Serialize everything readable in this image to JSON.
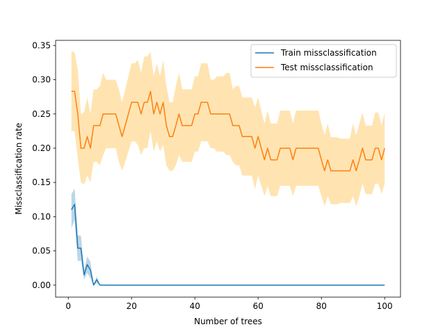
{
  "chart_data": {
    "type": "line",
    "xlabel": "Number of trees",
    "ylabel": "Missclassification rate",
    "xlim": [
      -4,
      105
    ],
    "ylim": [
      -0.0175,
      0.3575
    ],
    "xticks": [
      0,
      20,
      40,
      60,
      80,
      100
    ],
    "yticks": [
      0.0,
      0.05,
      0.1,
      0.15,
      0.2,
      0.25,
      0.3,
      0.35
    ],
    "ytick_format": 2,
    "grid": false,
    "legend_position": "top-right",
    "series": [
      {
        "name": "Train missclassification",
        "color": "#1f77b4",
        "band_color": "#1f77b4",
        "x": [
          1,
          2,
          3,
          4,
          5,
          6,
          7,
          8,
          9,
          10,
          11,
          12,
          13,
          14,
          15,
          16,
          17,
          18,
          19,
          20,
          21,
          22,
          23,
          24,
          25,
          26,
          27,
          28,
          29,
          30,
          31,
          32,
          33,
          34,
          35,
          36,
          37,
          38,
          39,
          40,
          41,
          42,
          43,
          44,
          45,
          46,
          47,
          48,
          49,
          50,
          51,
          52,
          53,
          54,
          55,
          56,
          57,
          58,
          59,
          60,
          61,
          62,
          63,
          64,
          65,
          66,
          67,
          68,
          69,
          70,
          71,
          72,
          73,
          74,
          75,
          76,
          77,
          78,
          79,
          80,
          81,
          82,
          83,
          84,
          85,
          86,
          87,
          88,
          89,
          90,
          91,
          92,
          93,
          94,
          95,
          96,
          97,
          98,
          99,
          100
        ],
        "values": [
          0.11,
          0.118,
          0.054,
          0.054,
          0.015,
          0.03,
          0.022,
          0.0,
          0.008,
          0.0,
          0.0,
          0.0,
          0.0,
          0.0,
          0.0,
          0.0,
          0.0,
          0.0,
          0.0,
          0.0,
          0.0,
          0.0,
          0.0,
          0.0,
          0.0,
          0.0,
          0.0,
          0.0,
          0.0,
          0.0,
          0.0,
          0.0,
          0.0,
          0.0,
          0.0,
          0.0,
          0.0,
          0.0,
          0.0,
          0.0,
          0.0,
          0.0,
          0.0,
          0.0,
          0.0,
          0.0,
          0.0,
          0.0,
          0.0,
          0.0,
          0.0,
          0.0,
          0.0,
          0.0,
          0.0,
          0.0,
          0.0,
          0.0,
          0.0,
          0.0,
          0.0,
          0.0,
          0.0,
          0.0,
          0.0,
          0.0,
          0.0,
          0.0,
          0.0,
          0.0,
          0.0,
          0.0,
          0.0,
          0.0,
          0.0,
          0.0,
          0.0,
          0.0,
          0.0,
          0.0,
          0.0,
          0.0,
          0.0,
          0.0,
          0.0,
          0.0,
          0.0,
          0.0,
          0.0,
          0.0,
          0.0,
          0.0,
          0.0,
          0.0,
          0.0,
          0.0,
          0.0,
          0.0,
          0.0,
          0.0
        ],
        "lower": [
          0.083,
          0.095,
          0.035,
          0.036,
          0.008,
          0.018,
          0.01,
          0.0,
          0.003,
          0.0,
          0.0,
          0.0,
          0.0,
          0.0,
          0.0,
          0.0,
          0.0,
          0.0,
          0.0,
          0.0,
          0.0,
          0.0,
          0.0,
          0.0,
          0.0,
          0.0,
          0.0,
          0.0,
          0.0,
          0.0,
          0.0,
          0.0,
          0.0,
          0.0,
          0.0,
          0.0,
          0.0,
          0.0,
          0.0,
          0.0,
          0.0,
          0.0,
          0.0,
          0.0,
          0.0,
          0.0,
          0.0,
          0.0,
          0.0,
          0.0,
          0.0,
          0.0,
          0.0,
          0.0,
          0.0,
          0.0,
          0.0,
          0.0,
          0.0,
          0.0,
          0.0,
          0.0,
          0.0,
          0.0,
          0.0,
          0.0,
          0.0,
          0.0,
          0.0,
          0.0,
          0.0,
          0.0,
          0.0,
          0.0,
          0.0,
          0.0,
          0.0,
          0.0,
          0.0,
          0.0,
          0.0,
          0.0,
          0.0,
          0.0,
          0.0,
          0.0,
          0.0,
          0.0,
          0.0,
          0.0,
          0.0,
          0.0,
          0.0,
          0.0,
          0.0,
          0.0,
          0.0,
          0.0,
          0.0,
          0.0
        ],
        "upper": [
          0.133,
          0.141,
          0.073,
          0.072,
          0.022,
          0.042,
          0.034,
          0.0,
          0.013,
          0.0,
          0.0,
          0.0,
          0.0,
          0.0,
          0.0,
          0.0,
          0.0,
          0.0,
          0.0,
          0.0,
          0.0,
          0.0,
          0.0,
          0.0,
          0.0,
          0.0,
          0.0,
          0.0,
          0.0,
          0.0,
          0.0,
          0.0,
          0.0,
          0.0,
          0.0,
          0.0,
          0.0,
          0.0,
          0.0,
          0.0,
          0.0,
          0.0,
          0.0,
          0.0,
          0.0,
          0.0,
          0.0,
          0.0,
          0.0,
          0.0,
          0.0,
          0.0,
          0.0,
          0.0,
          0.0,
          0.0,
          0.0,
          0.0,
          0.0,
          0.0,
          0.0,
          0.0,
          0.0,
          0.0,
          0.0,
          0.0,
          0.0,
          0.0,
          0.0,
          0.0,
          0.0,
          0.0,
          0.0,
          0.0,
          0.0,
          0.0,
          0.0,
          0.0,
          0.0,
          0.0,
          0.0,
          0.0,
          0.0,
          0.0,
          0.0,
          0.0,
          0.0,
          0.0,
          0.0,
          0.0,
          0.0,
          0.0,
          0.0,
          0.0,
          0.0,
          0.0,
          0.0,
          0.0,
          0.0,
          0.0
        ]
      },
      {
        "name": "Test missclassification",
        "color": "#ff7f0e",
        "band_color": "#ffa500",
        "x": [
          1,
          2,
          3,
          4,
          5,
          6,
          7,
          8,
          9,
          10,
          11,
          12,
          13,
          14,
          15,
          16,
          17,
          18,
          19,
          20,
          21,
          22,
          23,
          24,
          25,
          26,
          27,
          28,
          29,
          30,
          31,
          32,
          33,
          34,
          35,
          36,
          37,
          38,
          39,
          40,
          41,
          42,
          43,
          44,
          45,
          46,
          47,
          48,
          49,
          50,
          51,
          52,
          53,
          54,
          55,
          56,
          57,
          58,
          59,
          60,
          61,
          62,
          63,
          64,
          65,
          66,
          67,
          68,
          69,
          70,
          71,
          72,
          73,
          74,
          75,
          76,
          77,
          78,
          79,
          80,
          81,
          82,
          83,
          84,
          85,
          86,
          87,
          88,
          89,
          90,
          91,
          92,
          93,
          94,
          95,
          96,
          97,
          98,
          99,
          100
        ],
        "values": [
          0.283,
          0.283,
          0.25,
          0.2,
          0.2,
          0.217,
          0.2,
          0.233,
          0.233,
          0.233,
          0.25,
          0.25,
          0.25,
          0.25,
          0.25,
          0.233,
          0.217,
          0.233,
          0.25,
          0.267,
          0.267,
          0.267,
          0.25,
          0.267,
          0.267,
          0.283,
          0.25,
          0.267,
          0.25,
          0.267,
          0.233,
          0.217,
          0.217,
          0.233,
          0.25,
          0.233,
          0.233,
          0.233,
          0.233,
          0.25,
          0.25,
          0.267,
          0.267,
          0.267,
          0.25,
          0.25,
          0.25,
          0.25,
          0.25,
          0.25,
          0.25,
          0.233,
          0.233,
          0.233,
          0.217,
          0.217,
          0.217,
          0.217,
          0.2,
          0.217,
          0.2,
          0.183,
          0.2,
          0.183,
          0.183,
          0.183,
          0.2,
          0.2,
          0.2,
          0.2,
          0.183,
          0.2,
          0.2,
          0.2,
          0.2,
          0.2,
          0.2,
          0.2,
          0.2,
          0.183,
          0.167,
          0.183,
          0.167,
          0.167,
          0.167,
          0.167,
          0.167,
          0.167,
          0.167,
          0.183,
          0.167,
          0.183,
          0.2,
          0.183,
          0.183,
          0.183,
          0.2,
          0.2,
          0.183,
          0.2
        ],
        "lower": [
          0.225,
          0.225,
          0.185,
          0.15,
          0.147,
          0.16,
          0.15,
          0.18,
          0.18,
          0.175,
          0.19,
          0.2,
          0.2,
          0.2,
          0.2,
          0.18,
          0.167,
          0.18,
          0.195,
          0.21,
          0.21,
          0.205,
          0.19,
          0.2,
          0.2,
          0.225,
          0.195,
          0.21,
          0.195,
          0.205,
          0.175,
          0.167,
          0.167,
          0.175,
          0.19,
          0.18,
          0.18,
          0.18,
          0.18,
          0.195,
          0.195,
          0.21,
          0.21,
          0.21,
          0.2,
          0.2,
          0.195,
          0.195,
          0.195,
          0.19,
          0.19,
          0.18,
          0.175,
          0.175,
          0.16,
          0.16,
          0.16,
          0.16,
          0.14,
          0.16,
          0.145,
          0.13,
          0.145,
          0.13,
          0.13,
          0.13,
          0.145,
          0.145,
          0.145,
          0.145,
          0.13,
          0.145,
          0.145,
          0.145,
          0.145,
          0.145,
          0.145,
          0.145,
          0.145,
          0.13,
          0.115,
          0.13,
          0.118,
          0.118,
          0.118,
          0.12,
          0.12,
          0.12,
          0.12,
          0.13,
          0.115,
          0.13,
          0.148,
          0.133,
          0.133,
          0.133,
          0.148,
          0.148,
          0.133,
          0.148
        ],
        "upper": [
          0.342,
          0.34,
          0.315,
          0.25,
          0.253,
          0.274,
          0.25,
          0.286,
          0.286,
          0.291,
          0.31,
          0.3,
          0.3,
          0.3,
          0.3,
          0.286,
          0.267,
          0.286,
          0.305,
          0.324,
          0.324,
          0.329,
          0.31,
          0.334,
          0.334,
          0.341,
          0.305,
          0.324,
          0.305,
          0.329,
          0.291,
          0.267,
          0.267,
          0.291,
          0.31,
          0.286,
          0.286,
          0.286,
          0.286,
          0.305,
          0.305,
          0.324,
          0.324,
          0.324,
          0.3,
          0.3,
          0.305,
          0.305,
          0.305,
          0.31,
          0.31,
          0.286,
          0.291,
          0.291,
          0.274,
          0.274,
          0.274,
          0.274,
          0.26,
          0.274,
          0.255,
          0.236,
          0.255,
          0.236,
          0.236,
          0.236,
          0.255,
          0.255,
          0.255,
          0.255,
          0.236,
          0.255,
          0.255,
          0.255,
          0.255,
          0.255,
          0.255,
          0.255,
          0.255,
          0.236,
          0.219,
          0.236,
          0.216,
          0.216,
          0.216,
          0.214,
          0.214,
          0.214,
          0.214,
          0.236,
          0.219,
          0.236,
          0.252,
          0.233,
          0.233,
          0.233,
          0.252,
          0.252,
          0.233,
          0.252
        ]
      }
    ]
  }
}
